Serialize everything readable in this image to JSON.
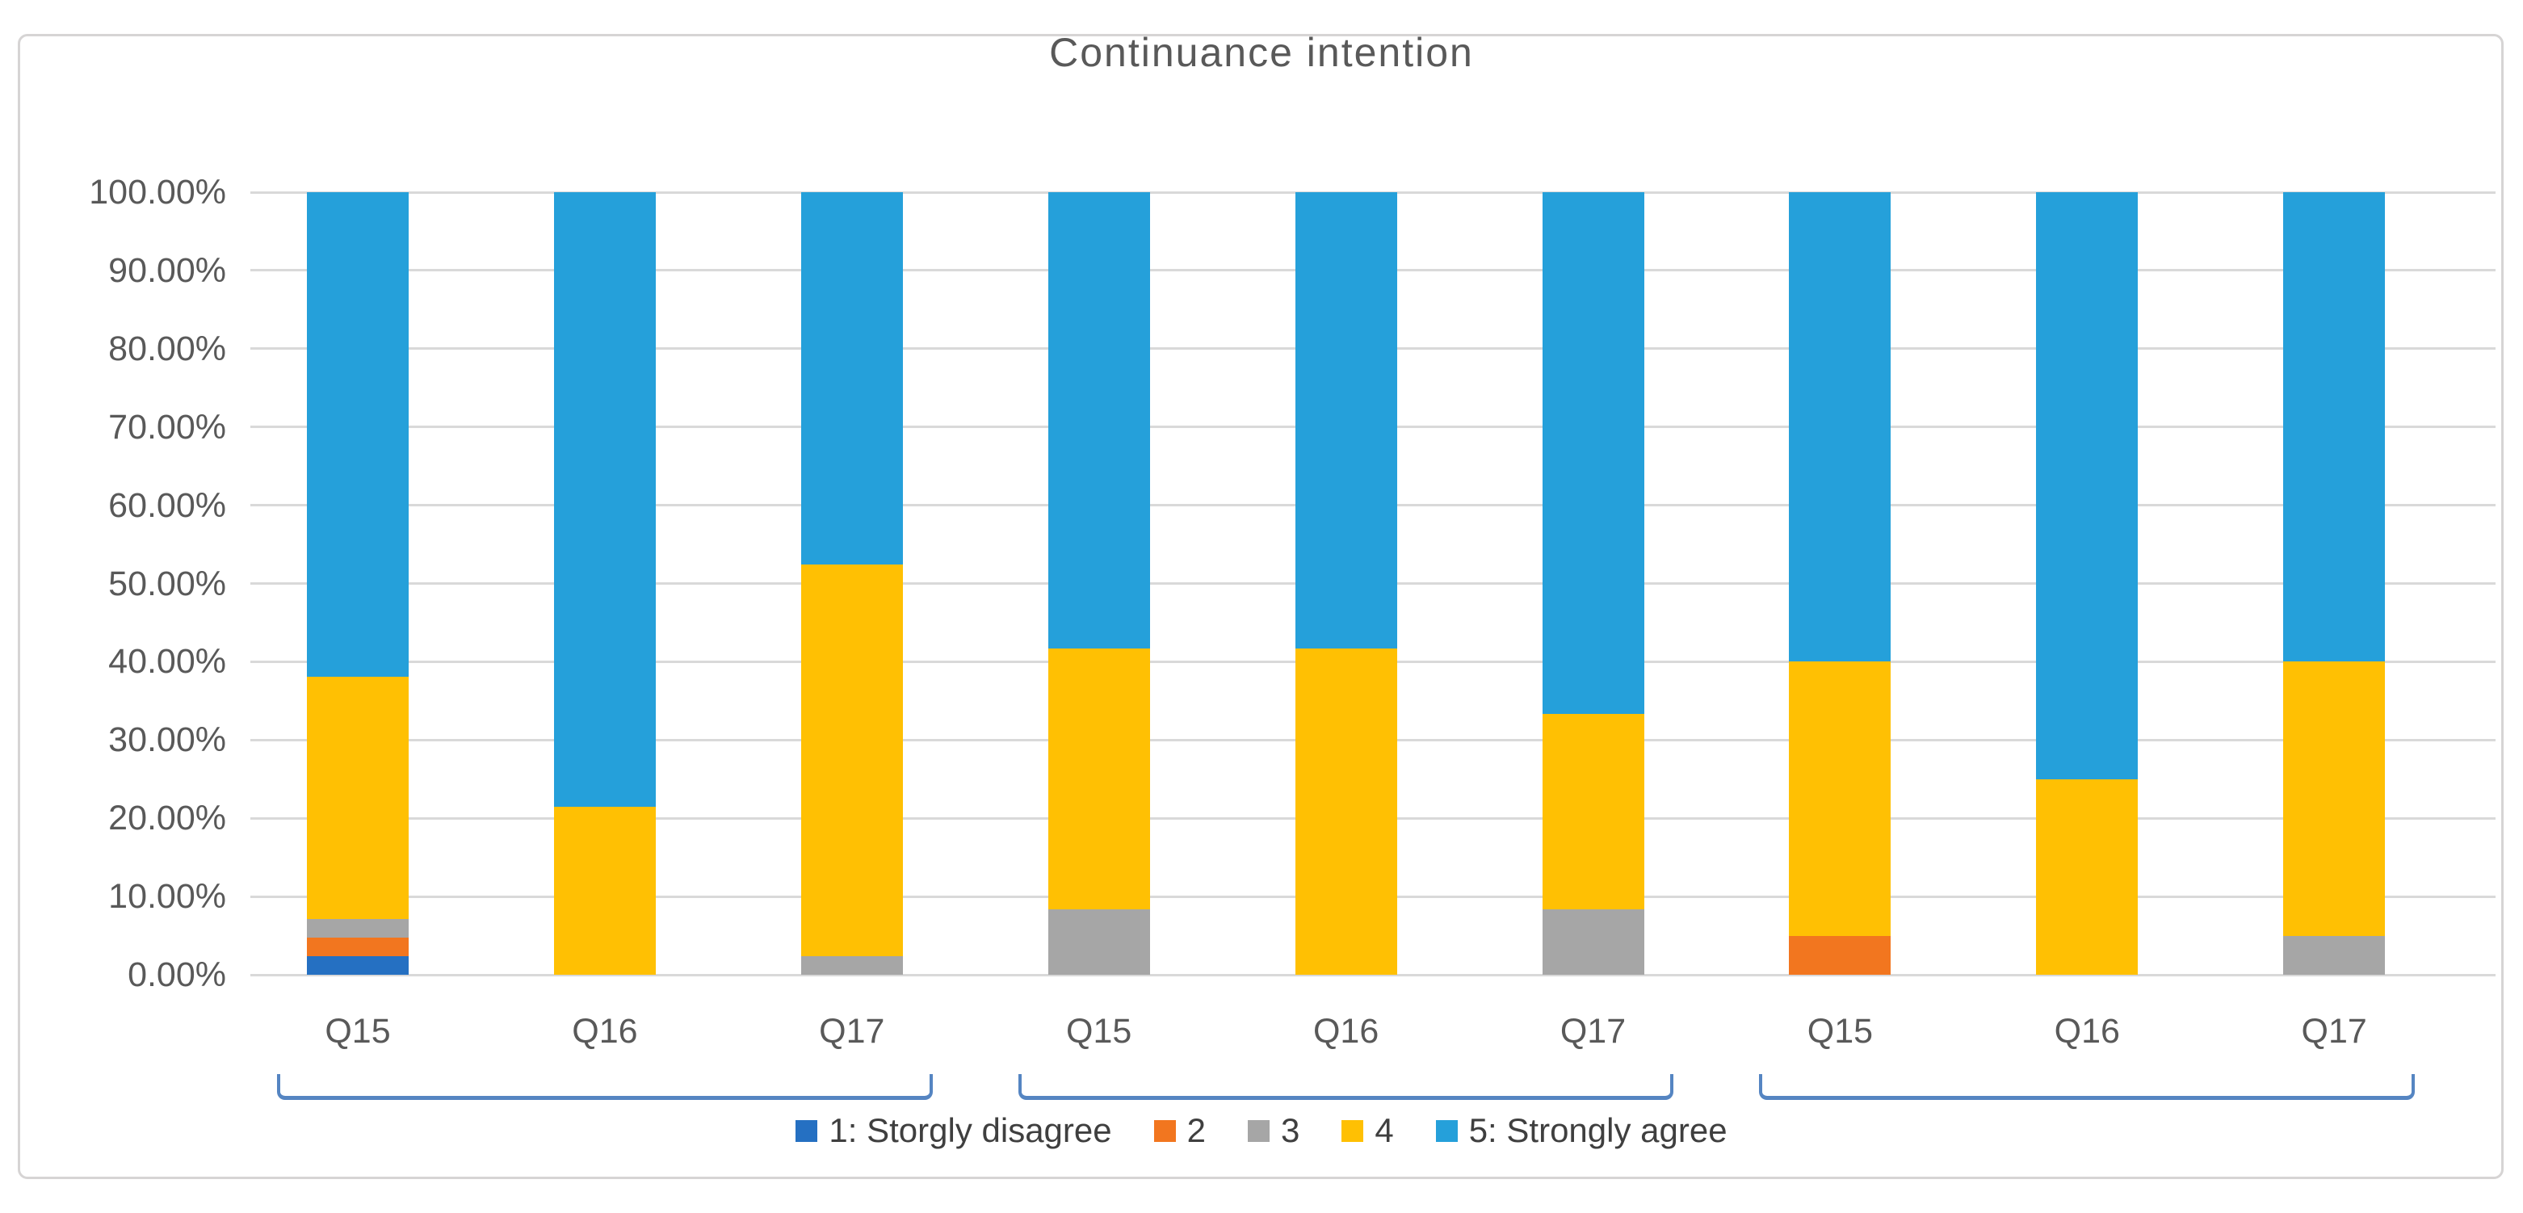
{
  "figure": {
    "title": "Continuance intention"
  },
  "chart_data": {
    "type": "bar",
    "subtype": "stacked-100-percent-column",
    "title": "Continuance intention",
    "y_axis": {
      "min": 0,
      "max": 100,
      "step": 10,
      "grid": true,
      "tick_labels": [
        "0.00%",
        "10.00%",
        "20.00%",
        "30.00%",
        "40.00%",
        "50.00%",
        "60.00%",
        "70.00%",
        "80.00%",
        "90.00%",
        "100.00%"
      ]
    },
    "x_axis": {
      "bar_labels": [
        "Q15",
        "Q16",
        "Q17",
        "Q15",
        "Q16",
        "Q17",
        "Q15",
        "Q16",
        "Q17"
      ]
    },
    "groups": [
      {
        "bar_indices": [
          0,
          1,
          2
        ]
      },
      {
        "bar_indices": [
          3,
          4,
          5
        ]
      },
      {
        "bar_indices": [
          6,
          7,
          8
        ]
      }
    ],
    "series": [
      {
        "name": "1: Storgly disagree",
        "color": "#2570c2",
        "values": [
          2.38,
          0,
          0,
          0,
          0,
          0,
          0,
          0,
          0
        ]
      },
      {
        "name": "2",
        "color": "#f2761f",
        "values": [
          2.38,
          0,
          0,
          0,
          0,
          0,
          5,
          0,
          0
        ]
      },
      {
        "name": "3",
        "color": "#a6a6a6",
        "values": [
          2.38,
          0,
          2.38,
          8.33,
          0,
          8.33,
          0,
          0,
          5
        ]
      },
      {
        "name": "4",
        "color": "#ffc003",
        "values": [
          30.95,
          21.43,
          50,
          33.33,
          41.67,
          25,
          35,
          25,
          35
        ]
      },
      {
        "name": "5: Strongly agree",
        "color": "#25a0da",
        "values": [
          61.9,
          78.57,
          47.62,
          58.33,
          58.33,
          66.67,
          60,
          75,
          60
        ]
      }
    ],
    "legend": {
      "position": "bottom",
      "entries": [
        "1: Storgly disagree",
        "2",
        "3",
        "4",
        "5: Strongly agree"
      ]
    },
    "colors": {
      "gridline": "#d9d9d9",
      "axis_text": "#595959",
      "title_text": "#595959",
      "legend_text": "#3f3f3f",
      "bracket": "#5585c2",
      "figure_border": "#d6d4d4"
    }
  }
}
